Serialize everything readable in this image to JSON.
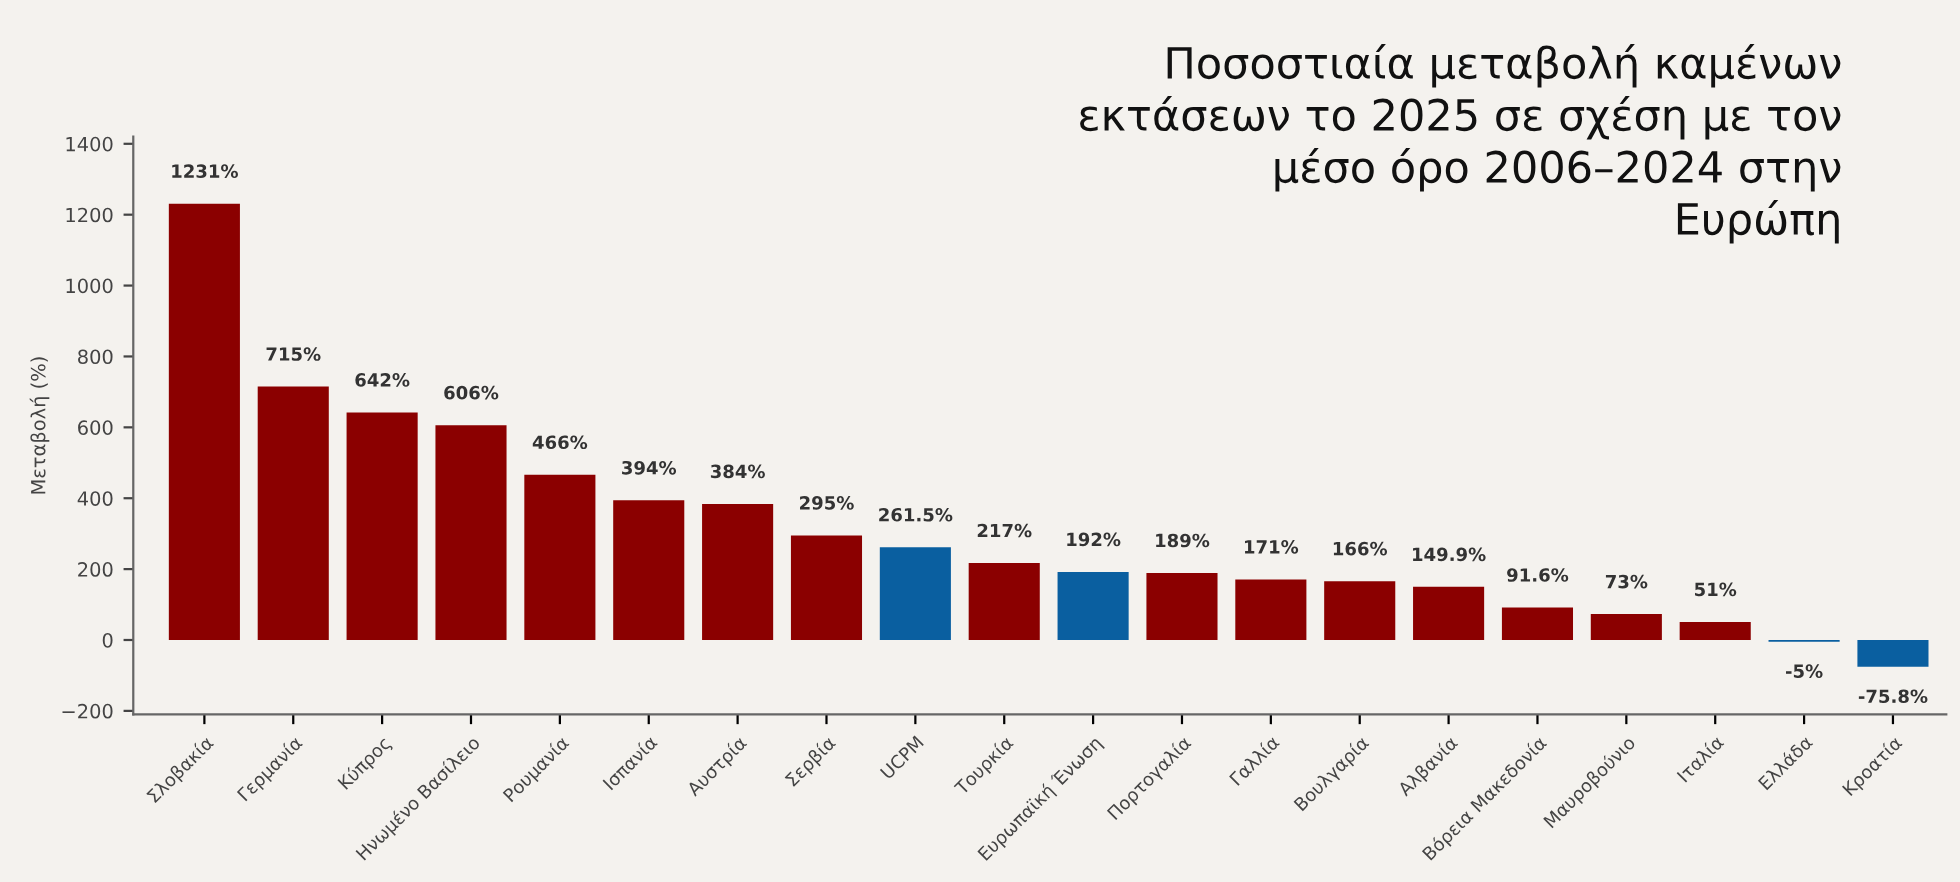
{
  "chart_data": {
    "type": "bar",
    "title": "Ποσοστιαία μεταβολή καμένων\nεκτάσεων το 2025 σε σχέση με τον\nμέσο όρο 2006–2024 στην\nΕυρώπη",
    "ylabel": "Μεταβολή (%)",
    "categories": [
      "Σλοβακία",
      "Γερμανία",
      "Κύπρος",
      "Ηνωμένο Βασίλειο",
      "Ρουμανία",
      "Ισπανία",
      "Αυστρία",
      "Σερβία",
      "UCPM",
      "Τουρκία",
      "Ευρωπαϊκή Ένωση",
      "Πορτογαλία",
      "Γαλλία",
      "Βουλγαρία",
      "Αλβανία",
      "Βόρεια Μακεδονία",
      "Μαυροβούνιο",
      "Ιταλία",
      "Ελλάδα",
      "Κροατία"
    ],
    "values": [
      1231,
      715,
      642,
      606,
      466,
      394,
      384,
      295,
      261.5,
      217,
      192,
      189,
      171,
      166,
      149.9,
      91.6,
      73,
      51,
      -5,
      -75.8
    ],
    "colors": [
      "#8b0000",
      "#8b0000",
      "#8b0000",
      "#8b0000",
      "#8b0000",
      "#8b0000",
      "#8b0000",
      "#8b0000",
      "#0a5fa0",
      "#8b0000",
      "#0a5fa0",
      "#8b0000",
      "#8b0000",
      "#8b0000",
      "#8b0000",
      "#8b0000",
      "#8b0000",
      "#8b0000",
      "#0a5fa0",
      "#0a5fa0"
    ],
    "value_labels": [
      "1231%",
      "715%",
      "642%",
      "606%",
      "466%",
      "394%",
      "384%",
      "295%",
      "261.5%",
      "217%",
      "192%",
      "189%",
      "171%",
      "166%",
      "149.9%",
      "91.6%",
      "73%",
      "51%",
      "-5%",
      "-75.8%"
    ],
    "ylim": [
      -210,
      1420
    ],
    "yticks": [
      {
        "value": -200,
        "label": "−200"
      },
      0,
      200,
      400,
      600,
      800,
      1000,
      1200,
      1400
    ],
    "grid": false
  }
}
